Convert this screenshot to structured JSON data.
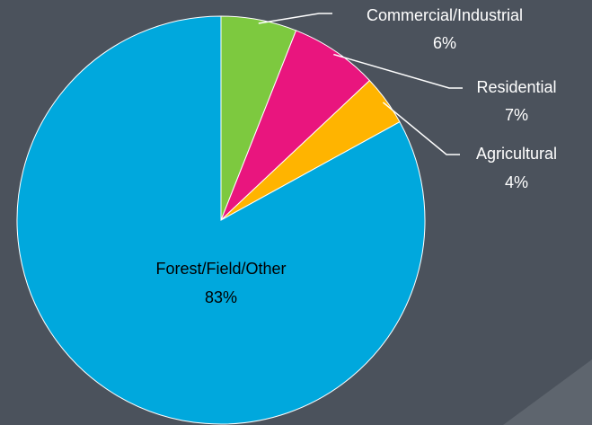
{
  "chart_data": {
    "type": "pie",
    "categories": [
      "Commercial/Industrial",
      "Residential",
      "Agricultural",
      "Forest/Field/Other"
    ],
    "values": [
      6,
      7,
      4,
      83
    ],
    "value_labels": [
      "6%",
      "7%",
      "4%",
      "83%"
    ],
    "colors": [
      "#7dc93f",
      "#e9157e",
      "#ffb400",
      "#00a8dd"
    ]
  }
}
